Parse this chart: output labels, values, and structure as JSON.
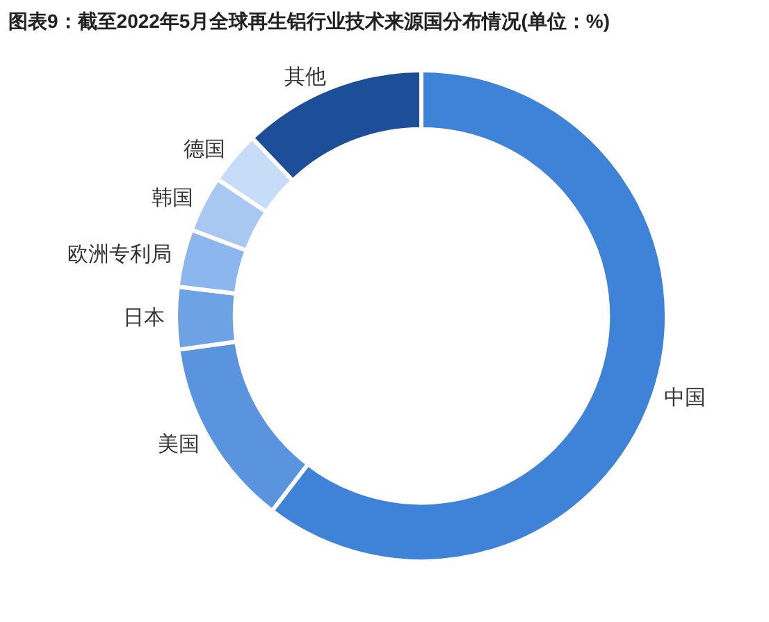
{
  "chart_data": {
    "type": "donut",
    "title": "图表9：截至2022年5月全球再生铝行业技术来源国分布情况(单位：%)",
    "categories": [
      "中国",
      "美国",
      "日本",
      "欧洲专利局",
      "韩国",
      "德国",
      "其他"
    ],
    "values": [
      60.4,
      12.4,
      4.1,
      3.8,
      3.7,
      3.5,
      12.1
    ],
    "colors": [
      "#3f83d9",
      "#5a94df",
      "#6da2e5",
      "#8cb7ee",
      "#a8c8f2",
      "#c7dcf6",
      "#1d4f99"
    ],
    "legend": false
  }
}
